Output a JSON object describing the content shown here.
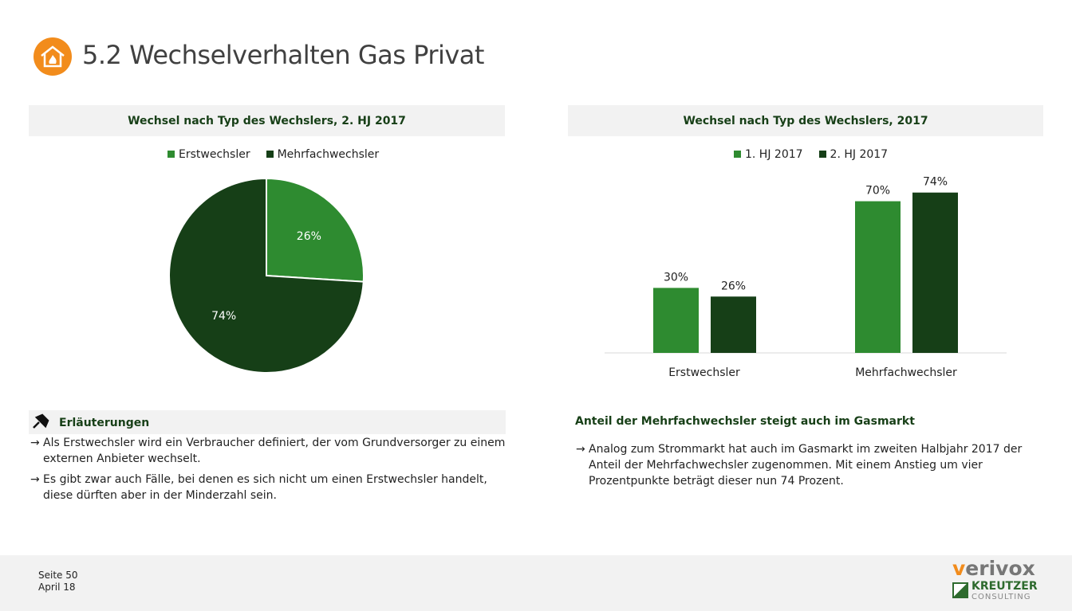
{
  "page": {
    "title": "5.2 Wechselverhalten Gas Privat",
    "icon": "house-fire-icon",
    "accent": "#f28c1c"
  },
  "colors": {
    "light_green": "#2e8b30",
    "dark_green": "#163f17"
  },
  "left_chart": {
    "header": "Wechsel nach Typ des Wechslers, 2. HJ 2017",
    "chart_data": {
      "type": "pie",
      "legend": [
        "Erstwechsler",
        "Mehrfachwechsler"
      ],
      "legend_position": "top",
      "slices": [
        {
          "name": "Erstwechsler",
          "value": 26,
          "label": "26%"
        },
        {
          "name": "Mehrfachwechsler",
          "value": 74,
          "label": "74%"
        }
      ]
    }
  },
  "right_chart": {
    "header": "Wechsel nach Typ des Wechslers, 2017",
    "chart_data": {
      "type": "bar",
      "categories": [
        "Erstwechsler",
        "Mehrfachwechsler"
      ],
      "legend_position": "top",
      "ylim": [
        0,
        80
      ],
      "series": [
        {
          "name": "1. HJ 2017",
          "values": [
            30,
            70
          ],
          "labels": [
            "30%",
            "70%"
          ]
        },
        {
          "name": "2. HJ 2017",
          "values": [
            26,
            74
          ],
          "labels": [
            "26%",
            "74%"
          ]
        }
      ]
    }
  },
  "notes": {
    "title": "Erläuterungen",
    "icon": "pin-icon",
    "items": [
      "Als Erstwechsler wird ein Verbraucher definiert, der vom Grundversorger zu einem externen Anbieter wechselt.",
      "Es gibt zwar auch Fälle, bei denen es sich nicht um einen Erstwechsler handelt, diese dürften aber in der Minderzahl sein."
    ]
  },
  "summary": {
    "title": "Anteil der Mehrfachwechsler steigt auch im Gasmarkt",
    "items": [
      "Analog zum Strommarkt hat auch im Gasmarkt im zweiten Halbjahr 2017 der Anteil der Mehrfachwechsler zugenommen. Mit einem Anstieg um vier Prozentpunkte beträgt dieser nun 74 Prozent."
    ]
  },
  "footer": {
    "page": "Seite 50",
    "date": "April 18",
    "logo1": "verivox",
    "logo2_line1": "KREUTZER",
    "logo2_line2": "CONSULTING"
  },
  "arrow": "→"
}
